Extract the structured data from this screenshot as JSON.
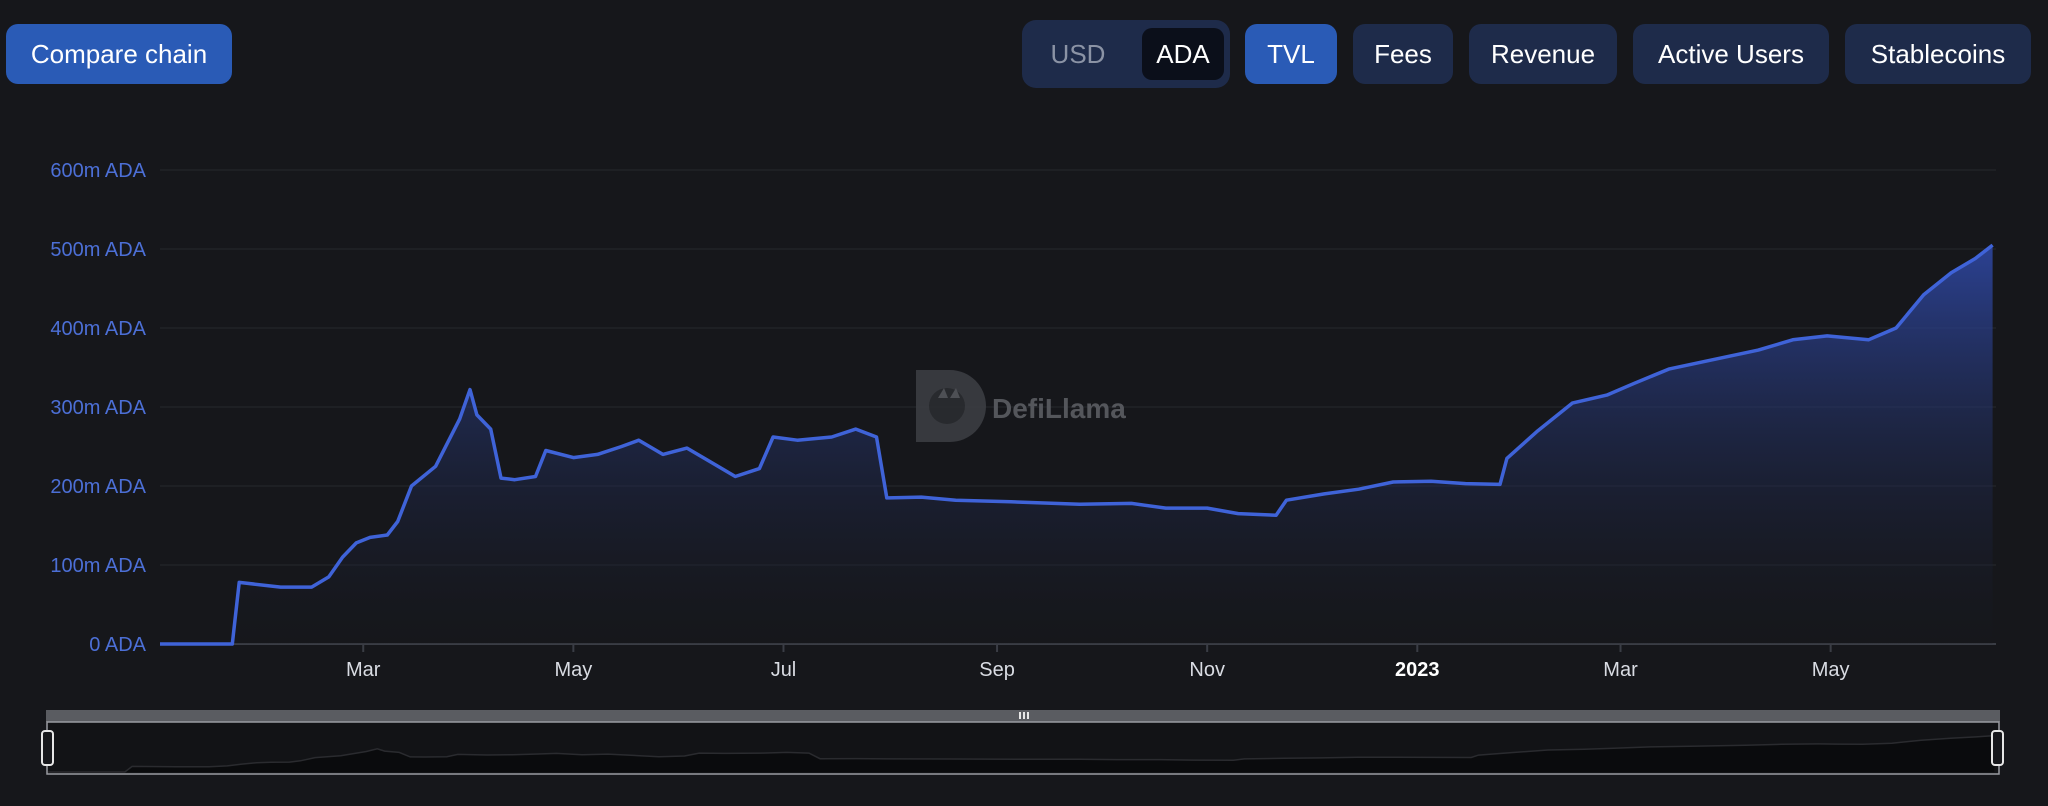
{
  "toolbar": {
    "compare_label": "Compare chain",
    "currency": {
      "options": [
        "USD",
        "ADA"
      ],
      "selected": "ADA"
    },
    "metrics": [
      {
        "label": "TVL",
        "active": true
      },
      {
        "label": "Fees",
        "active": false
      },
      {
        "label": "Revenue",
        "active": false
      },
      {
        "label": "Active Users",
        "active": false
      },
      {
        "label": "Stablecoins",
        "active": false
      }
    ]
  },
  "watermark": {
    "text": "DefiLlama",
    "icon": "llama-logo-icon"
  },
  "brush": {
    "handle_icon": "grip-icon"
  },
  "colors": {
    "line": "#3f63d8",
    "accent": "#2a5bb6",
    "background": "#16171b"
  },
  "chart_data": {
    "type": "area",
    "ylabel": "",
    "xlabel": "",
    "ylim": [
      0,
      600
    ],
    "y_ticks": [
      "0 ADA",
      "100m ADA",
      "200m ADA",
      "300m ADA",
      "400m ADA",
      "500m ADA",
      "600m ADA"
    ],
    "x_ticks": [
      "Mar",
      "May",
      "Jul",
      "Sep",
      "Nov",
      "2023",
      "Mar",
      "May"
    ],
    "x_ticks_bold": [
      "2023"
    ],
    "grid": true,
    "series": [
      {
        "unit": "m ADA",
        "points": [
          [
            "2022-01-01",
            0
          ],
          [
            "2022-01-22",
            0
          ],
          [
            "2022-01-24",
            78
          ],
          [
            "2022-02-05",
            72
          ],
          [
            "2022-02-14",
            72
          ],
          [
            "2022-02-19",
            85
          ],
          [
            "2022-02-23",
            110
          ],
          [
            "2022-02-27",
            128
          ],
          [
            "2022-03-03",
            135
          ],
          [
            "2022-03-08",
            138
          ],
          [
            "2022-03-11",
            155
          ],
          [
            "2022-03-15",
            200
          ],
          [
            "2022-03-22",
            225
          ],
          [
            "2022-03-29",
            285
          ],
          [
            "2022-04-01",
            322
          ],
          [
            "2022-04-03",
            290
          ],
          [
            "2022-04-07",
            272
          ],
          [
            "2022-04-10",
            210
          ],
          [
            "2022-04-14",
            208
          ],
          [
            "2022-04-20",
            212
          ],
          [
            "2022-04-23",
            245
          ],
          [
            "2022-05-01",
            236
          ],
          [
            "2022-05-08",
            240
          ],
          [
            "2022-05-15",
            250
          ],
          [
            "2022-05-20",
            258
          ],
          [
            "2022-05-27",
            240
          ],
          [
            "2022-06-03",
            248
          ],
          [
            "2022-06-10",
            230
          ],
          [
            "2022-06-17",
            212
          ],
          [
            "2022-06-24",
            222
          ],
          [
            "2022-06-28",
            262
          ],
          [
            "2022-07-05",
            258
          ],
          [
            "2022-07-15",
            262
          ],
          [
            "2022-07-22",
            272
          ],
          [
            "2022-07-28",
            262
          ],
          [
            "2022-07-31",
            185
          ],
          [
            "2022-08-10",
            186
          ],
          [
            "2022-08-20",
            182
          ],
          [
            "2022-09-05",
            180
          ],
          [
            "2022-09-25",
            177
          ],
          [
            "2022-10-10",
            178
          ],
          [
            "2022-10-20",
            172
          ],
          [
            "2022-11-01",
            172
          ],
          [
            "2022-11-10",
            165
          ],
          [
            "2022-11-21",
            163
          ],
          [
            "2022-11-24",
            182
          ],
          [
            "2022-12-05",
            190
          ],
          [
            "2022-12-15",
            196
          ],
          [
            "2022-12-25",
            205
          ],
          [
            "2023-01-05",
            206
          ],
          [
            "2023-01-15",
            203
          ],
          [
            "2023-01-25",
            202
          ],
          [
            "2023-01-27",
            235
          ],
          [
            "2023-02-05",
            270
          ],
          [
            "2023-02-15",
            305
          ],
          [
            "2023-02-25",
            315
          ],
          [
            "2023-03-05",
            330
          ],
          [
            "2023-03-15",
            348
          ],
          [
            "2023-03-28",
            360
          ],
          [
            "2023-04-10",
            372
          ],
          [
            "2023-04-20",
            385
          ],
          [
            "2023-04-30",
            390
          ],
          [
            "2023-05-05",
            388
          ],
          [
            "2023-05-12",
            385
          ],
          [
            "2023-05-20",
            400
          ],
          [
            "2023-05-28",
            442
          ],
          [
            "2023-06-05",
            470
          ],
          [
            "2023-06-12",
            488
          ],
          [
            "2023-06-17",
            505
          ]
        ]
      }
    ]
  }
}
